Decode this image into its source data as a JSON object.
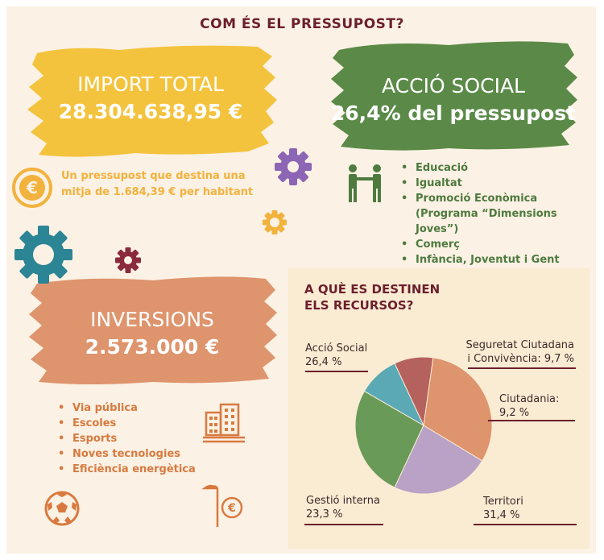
{
  "title": "COM ÉS EL PRESSUPOST?",
  "import_total": {
    "label": "IMPORT TOTAL",
    "value": "28.304.638,95 €"
  },
  "import_desc": "Un pressupost que destina una mitja de 1.684,39 € per habitant",
  "accio_social": {
    "label": "ACCIÓ SOCIAL",
    "value": "26,4% del pressupost",
    "items": [
      "Educació",
      "Igualtat",
      "Promoció Econòmica (Programa “Dimensions Joves”)",
      "Comerç",
      "Infància, Joventut i Gent Gran"
    ]
  },
  "inversions": {
    "label": "INVERSIONS",
    "value": "2.573.000 €",
    "items": [
      "Via pública",
      "Escoles",
      "Esports",
      "Noves tecnologies",
      "Eficiència energètica"
    ]
  },
  "panel_title": "A QUÈ ES DESTINEN\nELS RECURSOS?",
  "colors": {
    "yellow": "#f4c33e",
    "green": "#5b8a48",
    "orange_brush": "#de946c",
    "title": "#6b1f2c",
    "bullet_green": "#4e7a3f",
    "bullet_orange": "#d87a40"
  },
  "chart_data": {
    "type": "pie",
    "categories": [
      "Acció Social",
      "Seguretat Ciutadana i Convivència",
      "Ciutadania",
      "Territori",
      "Gestió interna"
    ],
    "values": [
      26.4,
      9.7,
      9.2,
      31.4,
      23.3
    ],
    "value_labels": [
      "26,4 %",
      "9,7 %",
      "9,2 %",
      "31,4 %",
      "23,3 %"
    ],
    "label_texts": [
      "Acció Social\n26,4 %",
      "Seguretat Ciutadana\ni Convivència: 9,7 %",
      "Ciutadania:\n9,2 %",
      "Territori\n31,4 %",
      "Gestió interna\n23,3 %"
    ],
    "colors": [
      "#6a9a57",
      "#5aa9b5",
      "#b5615d",
      "#de946c",
      "#b9a2c6"
    ]
  }
}
